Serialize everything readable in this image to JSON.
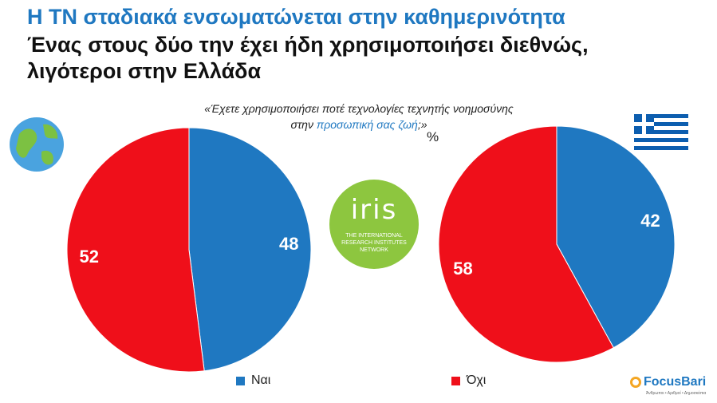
{
  "header": {
    "title": "Η ΤΝ σταδιακά ενσωματώνεται στην καθημερινότητα",
    "subtitle": "Ένας στους δύο την έχει ήδη χρησιμοποιήσει διεθνώς, λιγότεροι στην Ελλάδα"
  },
  "question": {
    "part1": "«Έχετε χρησιμοποιήσει ποτέ τεχνολογίες τεχνητής νοημοσύνης",
    "part2_prefix": "στην ",
    "part2_highlight": "προσωπική σας ζωή",
    "part2_suffix": ";»"
  },
  "unit_label": "%",
  "colors": {
    "yes": "#1f78c1",
    "no": "#ef0f1a",
    "accent": "#1f78c1"
  },
  "logos": {
    "iris_brand": "iris",
    "iris_sub": "THE INTERNATIONAL RESEARCH INSTITUTES NETWORK",
    "focus_name": "FocusBari",
    "focus_tag": "Άνθρωποι • Αριθμοί • Δημοσκόπια"
  },
  "chart_data": [
    {
      "type": "pie",
      "region": "global",
      "icon": "globe-icon",
      "slices": [
        {
          "label": "Ναι",
          "value": 48,
          "color": "#1f78c1"
        },
        {
          "label": "Όχι",
          "value": 52,
          "color": "#ef0f1a"
        }
      ]
    },
    {
      "type": "pie",
      "region": "greece",
      "icon": "greek-flag-icon",
      "slices": [
        {
          "label": "Ναι",
          "value": 42,
          "color": "#1f78c1"
        },
        {
          "label": "Όχι",
          "value": 58,
          "color": "#ef0f1a"
        }
      ]
    }
  ],
  "legend": [
    {
      "label": "Ναι",
      "color": "#1f78c1"
    },
    {
      "label": "Όχι",
      "color": "#ef0f1a"
    }
  ]
}
